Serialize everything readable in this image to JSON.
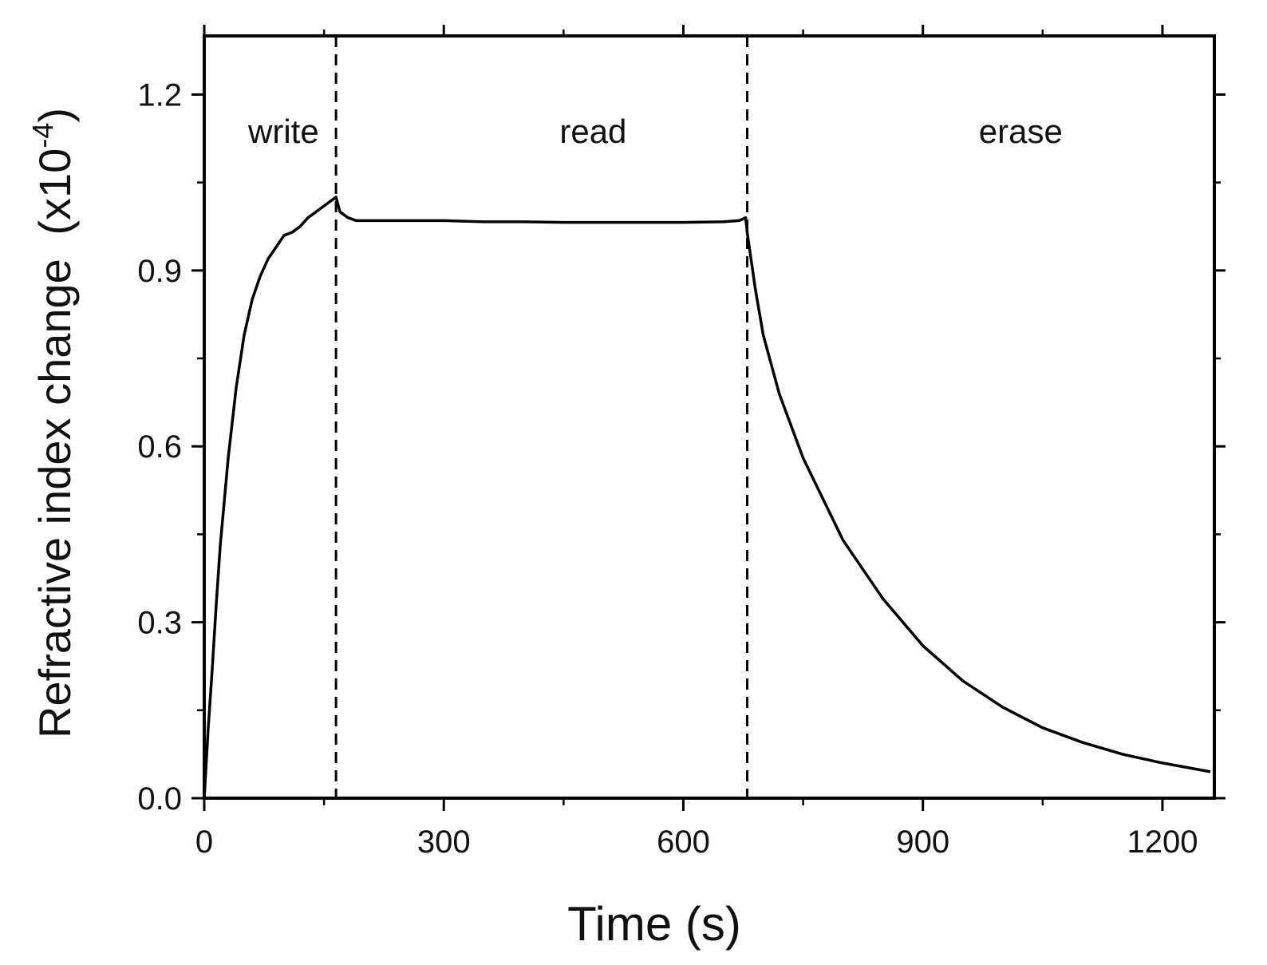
{
  "chart_data": {
    "type": "line",
    "xlabel": "Time (s)",
    "ylabel": "Refractive index change",
    "ylabel_unit_base": "(x10",
    "ylabel_unit_exp": "-4",
    "ylabel_unit_close": ")",
    "xlim": [
      0,
      1265
    ],
    "ylim": [
      0,
      1.3
    ],
    "x_ticks": [
      0,
      300,
      600,
      900,
      1200
    ],
    "x_tick_labels": [
      "0",
      "300",
      "600",
      "900",
      "1200"
    ],
    "y_ticks": [
      0.0,
      0.3,
      0.6,
      0.9,
      1.2
    ],
    "y_tick_labels": [
      "0.0",
      "0.3",
      "0.6",
      "0.9",
      "1.2"
    ],
    "phases": [
      {
        "label": "write",
        "x": 55
      },
      {
        "label": "read",
        "x": 445
      },
      {
        "label": "erase",
        "x": 970
      }
    ],
    "phase_boundaries": [
      165,
      680
    ],
    "series": [
      {
        "x": [
          0,
          5,
          10,
          15,
          20,
          30,
          40,
          50,
          60,
          70,
          80,
          90,
          100,
          110,
          120,
          130,
          140,
          150,
          160,
          165,
          170,
          180,
          190,
          200,
          250,
          300,
          350,
          400,
          450,
          500,
          550,
          600,
          650,
          670,
          678,
          680,
          690,
          700,
          720,
          750,
          800,
          850,
          900,
          950,
          1000,
          1050,
          1100,
          1150,
          1200,
          1260
        ],
        "y": [
          0.0,
          0.12,
          0.22,
          0.33,
          0.43,
          0.58,
          0.7,
          0.79,
          0.85,
          0.89,
          0.92,
          0.94,
          0.96,
          0.965,
          0.975,
          0.99,
          1.0,
          1.01,
          1.02,
          1.025,
          1.0,
          0.99,
          0.985,
          0.985,
          0.985,
          0.985,
          0.983,
          0.983,
          0.982,
          0.982,
          0.982,
          0.982,
          0.983,
          0.985,
          0.99,
          0.965,
          0.87,
          0.79,
          0.69,
          0.58,
          0.44,
          0.34,
          0.26,
          0.2,
          0.155,
          0.12,
          0.095,
          0.075,
          0.06,
          0.045
        ]
      }
    ],
    "grid": false
  }
}
